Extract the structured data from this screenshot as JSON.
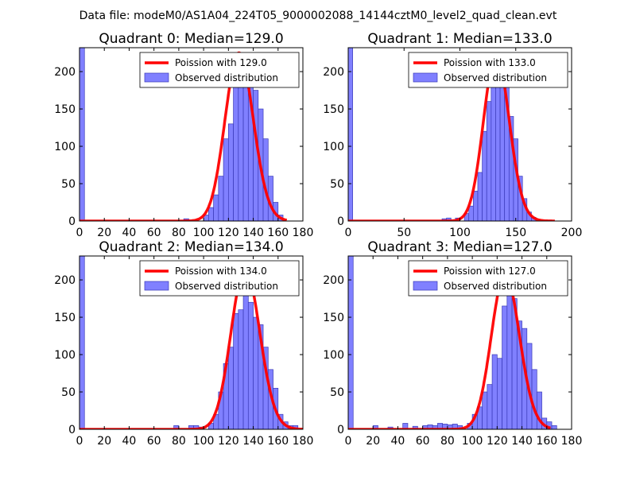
{
  "suptitle": "Data file: modeM0/AS1A04_224T05_9000002088_14144cztM0_level2_quad_clean.evt",
  "colors": {
    "bar_fill": "#8080ff",
    "bar_edge": "#3a3ab8",
    "curve": "#ff0000",
    "axis": "#000000"
  },
  "chart_data": [
    {
      "type": "bar",
      "title": "Quadrant 0: Median=129.0",
      "legend": [
        "Poission with 129.0",
        "Observed distribution"
      ],
      "legend_position": "top-right",
      "xlim": [
        0,
        180
      ],
      "ylim": [
        0,
        232
      ],
      "xticks": [
        0,
        20,
        40,
        60,
        80,
        100,
        120,
        140,
        160,
        180
      ],
      "xtick_labels": [
        "0",
        "20",
        "40",
        "60",
        "80",
        "100",
        "120",
        "140",
        "160",
        "180"
      ],
      "yticks": [
        0,
        50,
        100,
        150,
        200
      ],
      "ytick_labels": [
        "0",
        "50",
        "100",
        "150",
        "200"
      ],
      "bins": [
        [
          0,
          4,
          232
        ],
        [
          84,
          88,
          3
        ],
        [
          100,
          104,
          8
        ],
        [
          104,
          108,
          18
        ],
        [
          108,
          112,
          35
        ],
        [
          112,
          116,
          60
        ],
        [
          116,
          120,
          110
        ],
        [
          120,
          124,
          130
        ],
        [
          124,
          128,
          190
        ],
        [
          128,
          132,
          215
        ],
        [
          132,
          136,
          220
        ],
        [
          136,
          140,
          200
        ],
        [
          140,
          144,
          175
        ],
        [
          144,
          148,
          150
        ],
        [
          148,
          152,
          110
        ],
        [
          152,
          156,
          60
        ],
        [
          156,
          160,
          25
        ],
        [
          160,
          164,
          8
        ]
      ],
      "poisson_mean": 129.0,
      "curve_peak": 225,
      "curve_range": [
        0,
        167
      ]
    },
    {
      "type": "bar",
      "title": "Quadrant 1: Median=133.0",
      "legend": [
        "Poission with 133.0",
        "Observed distribution"
      ],
      "legend_position": "top-right",
      "xlim": [
        0,
        200
      ],
      "ylim": [
        0,
        232
      ],
      "xticks": [
        0,
        50,
        100,
        150,
        200
      ],
      "xtick_labels": [
        "0",
        "50",
        "100",
        "150",
        "200"
      ],
      "yticks": [
        0,
        50,
        100,
        150,
        200
      ],
      "ytick_labels": [
        "0",
        "50",
        "100",
        "150",
        "200"
      ],
      "bins": [
        [
          0,
          4,
          232
        ],
        [
          84,
          88,
          3
        ],
        [
          88,
          92,
          4
        ],
        [
          96,
          100,
          4
        ],
        [
          104,
          108,
          10
        ],
        [
          108,
          112,
          20
        ],
        [
          112,
          116,
          40
        ],
        [
          116,
          120,
          65
        ],
        [
          120,
          124,
          120
        ],
        [
          124,
          128,
          160
        ],
        [
          128,
          132,
          195
        ],
        [
          132,
          136,
          215
        ],
        [
          136,
          140,
          195
        ],
        [
          140,
          144,
          180
        ],
        [
          144,
          148,
          140
        ],
        [
          148,
          152,
          110
        ],
        [
          152,
          156,
          60
        ],
        [
          156,
          160,
          30
        ],
        [
          160,
          164,
          12
        ],
        [
          164,
          168,
          5
        ]
      ],
      "poisson_mean": 133.0,
      "curve_peak": 222,
      "curve_range": [
        0,
        185
      ]
    },
    {
      "type": "bar",
      "title": "Quadrant 2: Median=134.0",
      "legend": [
        "Poission with 134.0",
        "Observed distribution"
      ],
      "legend_position": "top-right",
      "xlim": [
        0,
        180
      ],
      "ylim": [
        0,
        232
      ],
      "xticks": [
        0,
        20,
        40,
        60,
        80,
        100,
        120,
        140,
        160,
        180
      ],
      "xtick_labels": [
        "0",
        "20",
        "40",
        "60",
        "80",
        "100",
        "120",
        "140",
        "160",
        "180"
      ],
      "yticks": [
        0,
        50,
        100,
        150,
        200
      ],
      "ytick_labels": [
        "0",
        "50",
        "100",
        "150",
        "200"
      ],
      "bins": [
        [
          0,
          4,
          232
        ],
        [
          76,
          80,
          5
        ],
        [
          88,
          92,
          5
        ],
        [
          92,
          96,
          5
        ],
        [
          96,
          100,
          3
        ],
        [
          104,
          108,
          8
        ],
        [
          108,
          112,
          20
        ],
        [
          112,
          116,
          50
        ],
        [
          116,
          120,
          88
        ],
        [
          120,
          124,
          110
        ],
        [
          124,
          128,
          155
        ],
        [
          128,
          132,
          160
        ],
        [
          132,
          136,
          180
        ],
        [
          136,
          140,
          170
        ],
        [
          140,
          144,
          150
        ],
        [
          144,
          148,
          140
        ],
        [
          148,
          152,
          110
        ],
        [
          152,
          156,
          80
        ],
        [
          156,
          160,
          55
        ],
        [
          160,
          164,
          20
        ],
        [
          164,
          168,
          10
        ],
        [
          168,
          172,
          5
        ],
        [
          172,
          176,
          5
        ]
      ],
      "poisson_mean": 134.0,
      "curve_peak": 215,
      "curve_range": [
        0,
        180
      ]
    },
    {
      "type": "bar",
      "title": "Quadrant 3: Median=127.0",
      "legend": [
        "Poission with 127.0",
        "Observed distribution"
      ],
      "legend_position": "top-right",
      "xlim": [
        0,
        180
      ],
      "ylim": [
        0,
        232
      ],
      "xticks": [
        0,
        20,
        40,
        60,
        80,
        100,
        120,
        140,
        160,
        180
      ],
      "xtick_labels": [
        "0",
        "20",
        "40",
        "60",
        "80",
        "100",
        "120",
        "140",
        "160",
        "180"
      ],
      "yticks": [
        0,
        50,
        100,
        150,
        200
      ],
      "ytick_labels": [
        "0",
        "50",
        "100",
        "150",
        "200"
      ],
      "bins": [
        [
          0,
          4,
          232
        ],
        [
          20,
          24,
          5
        ],
        [
          32,
          36,
          3
        ],
        [
          44,
          48,
          8
        ],
        [
          52,
          56,
          4
        ],
        [
          60,
          64,
          5
        ],
        [
          64,
          68,
          6
        ],
        [
          68,
          72,
          5
        ],
        [
          72,
          76,
          8
        ],
        [
          76,
          80,
          7
        ],
        [
          80,
          84,
          6
        ],
        [
          84,
          88,
          7
        ],
        [
          88,
          92,
          5
        ],
        [
          96,
          100,
          8
        ],
        [
          100,
          104,
          20
        ],
        [
          104,
          108,
          30
        ],
        [
          108,
          112,
          50
        ],
        [
          112,
          116,
          60
        ],
        [
          116,
          120,
          100
        ],
        [
          120,
          124,
          95
        ],
        [
          124,
          128,
          165
        ],
        [
          128,
          132,
          180
        ],
        [
          132,
          136,
          175
        ],
        [
          136,
          140,
          145
        ],
        [
          140,
          144,
          135
        ],
        [
          144,
          148,
          115
        ],
        [
          148,
          152,
          80
        ],
        [
          152,
          156,
          50
        ],
        [
          156,
          160,
          15
        ],
        [
          160,
          164,
          10
        ],
        [
          164,
          168,
          5
        ]
      ],
      "poisson_mean": 127.0,
      "curve_peak": 208,
      "curve_range": [
        0,
        163
      ]
    }
  ]
}
